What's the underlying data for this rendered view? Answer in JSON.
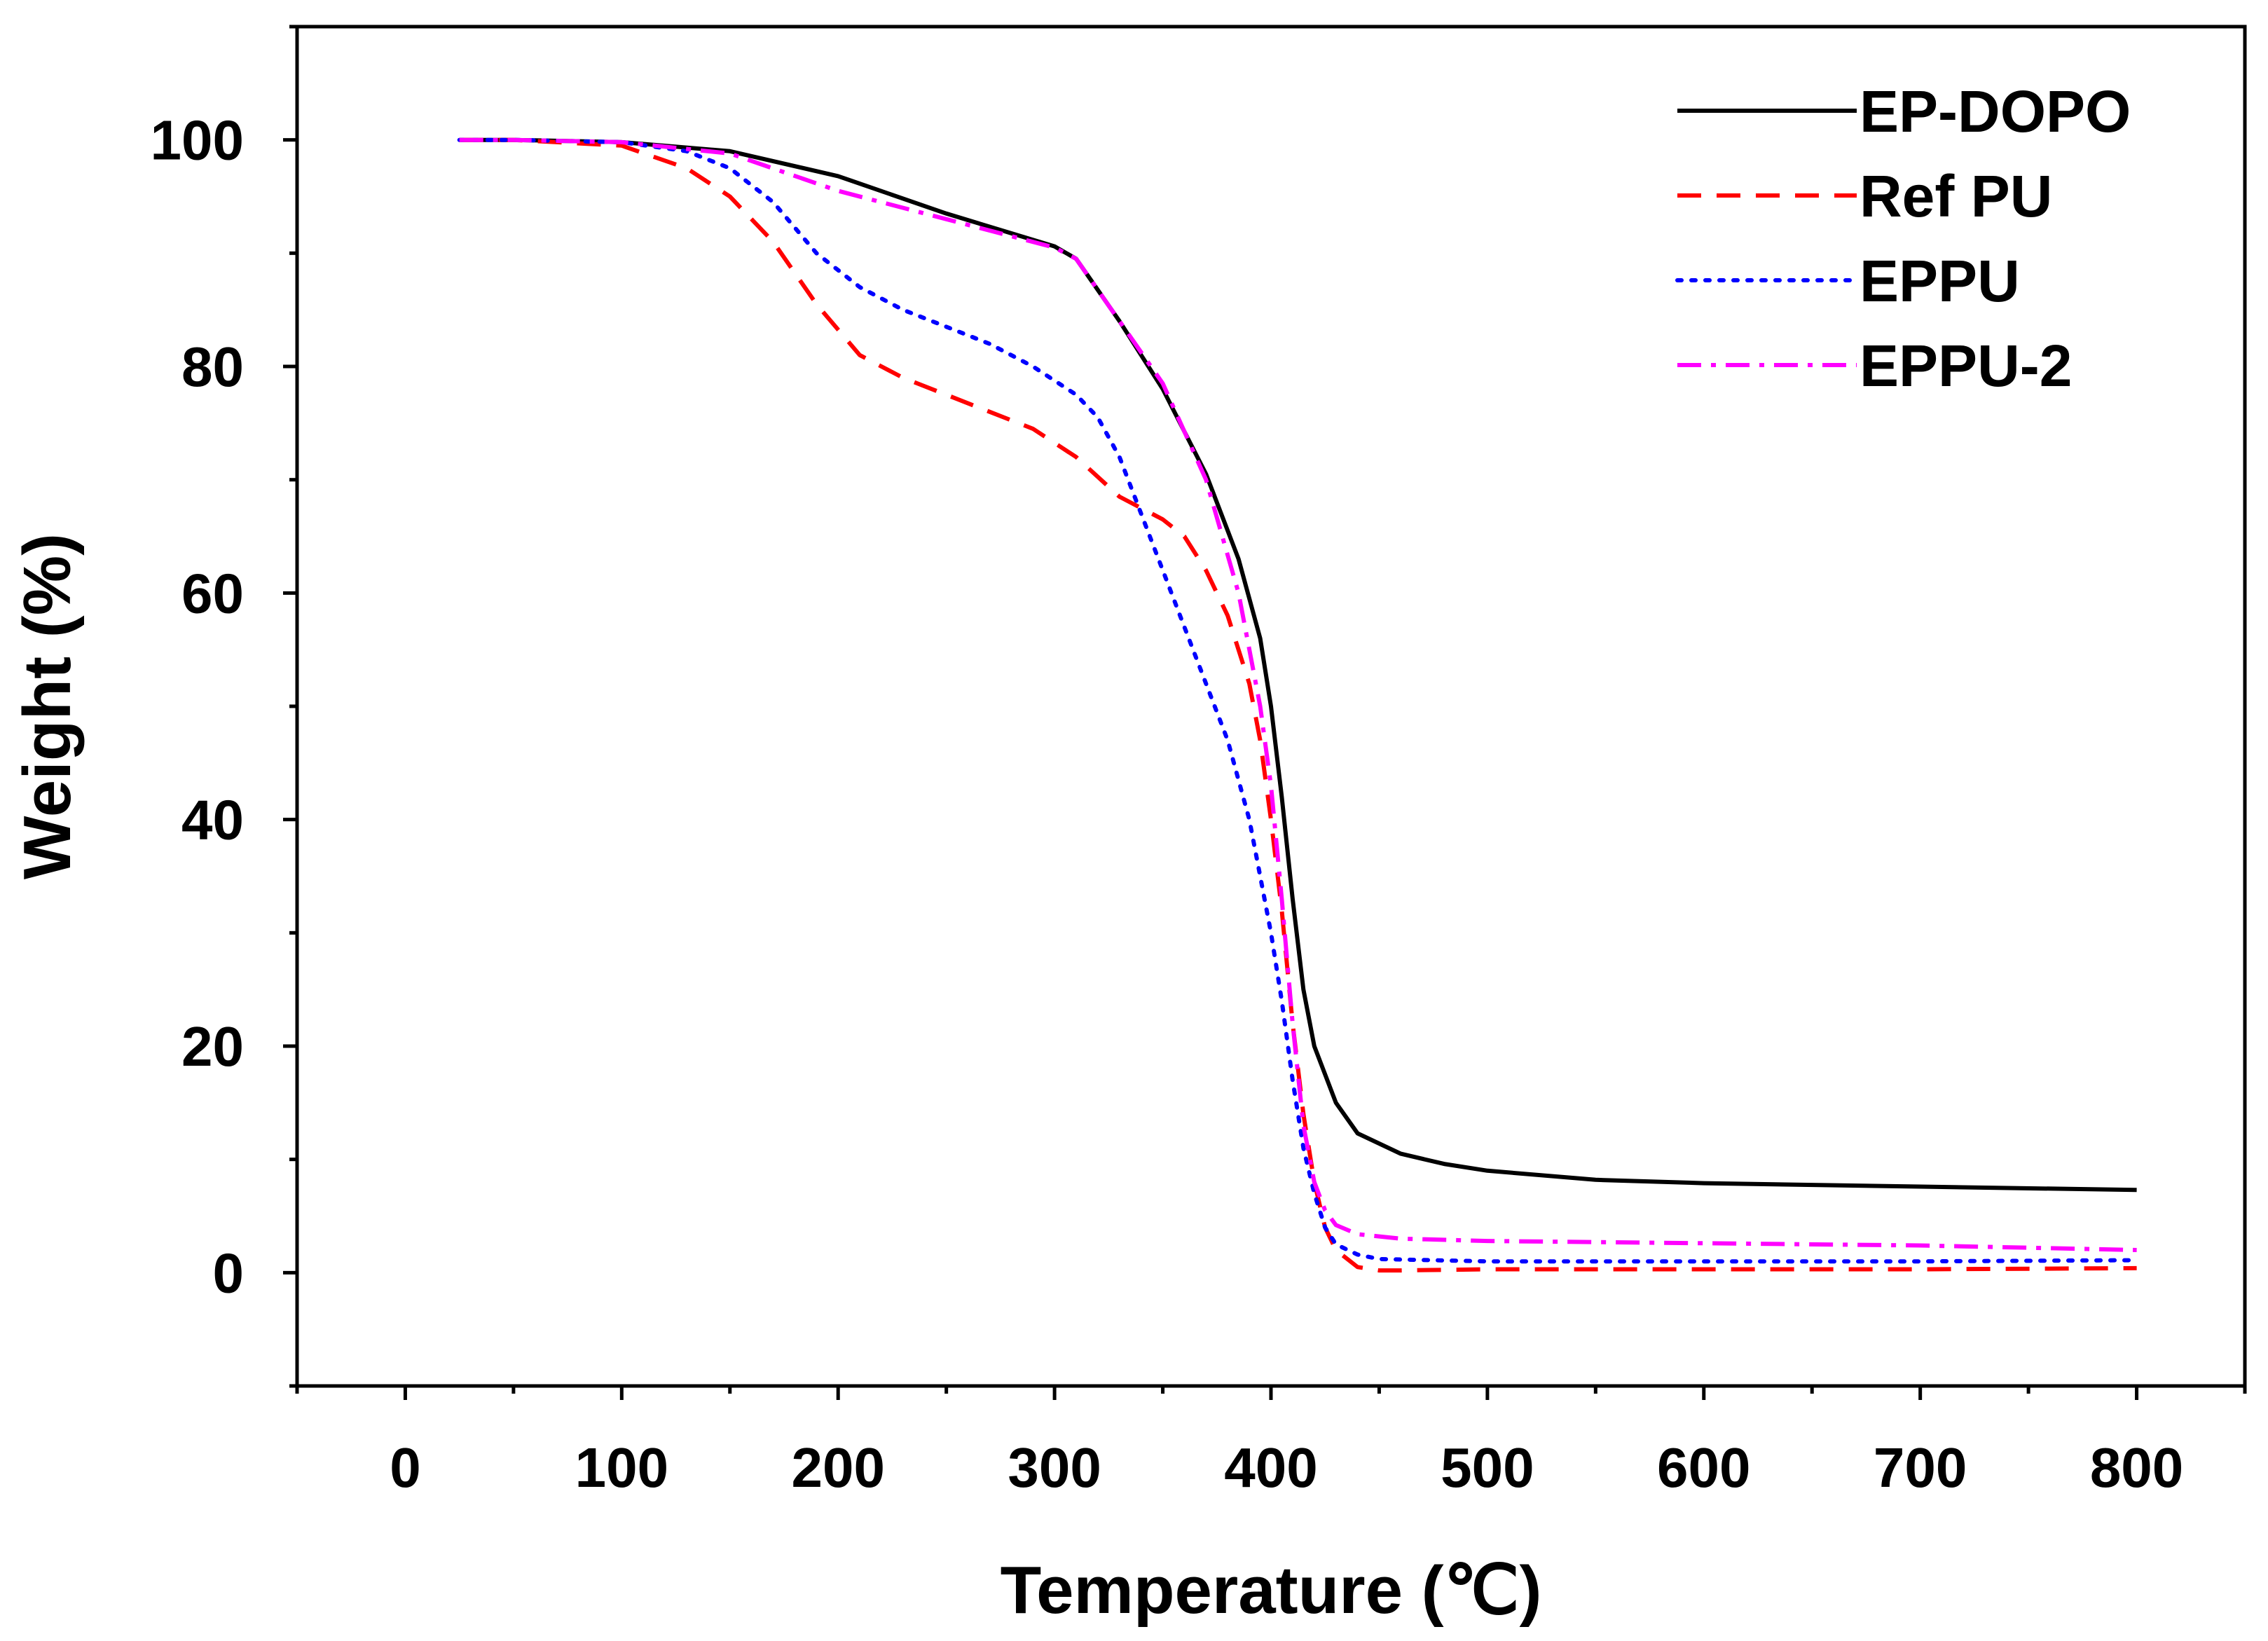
{
  "chart_data": {
    "type": "line",
    "title": "",
    "xlabel": "Temperature (℃)",
    "ylabel": "Weight (%)",
    "xlim": [
      -50,
      850
    ],
    "ylim": [
      -10,
      110
    ],
    "xticks": [
      0,
      100,
      200,
      300,
      400,
      500,
      600,
      700,
      800
    ],
    "xtick_labels": [
      "0",
      "100",
      "200",
      "300",
      "400",
      "500",
      "600",
      "700",
      "800"
    ],
    "yticks": [
      0,
      20,
      40,
      60,
      80,
      100
    ],
    "ytick_labels": [
      "0",
      "20",
      "40",
      "60",
      "80",
      "100"
    ],
    "grid": false,
    "legend_position": "top-right",
    "series": [
      {
        "name": "EP-DOPO",
        "color": "#000000",
        "style": "solid",
        "x": [
          25,
          50,
          100,
          150,
          200,
          250,
          300,
          310,
          330,
          350,
          370,
          385,
          395,
          400,
          405,
          410,
          415,
          420,
          430,
          440,
          460,
          480,
          500,
          550,
          600,
          700,
          800
        ],
        "y": [
          100,
          100,
          99.8,
          99,
          96.8,
          93.5,
          90.6,
          89.5,
          84,
          78,
          70.5,
          63,
          56,
          50,
          42,
          33,
          25,
          20,
          15,
          12.3,
          10.5,
          9.6,
          9,
          8.2,
          7.9,
          7.6,
          7.3
        ]
      },
      {
        "name": "Ref PU",
        "color": "#ff0000",
        "style": "dashed",
        "x": [
          25,
          50,
          100,
          130,
          150,
          170,
          190,
          210,
          230,
          250,
          270,
          290,
          310,
          330,
          350,
          360,
          370,
          380,
          390,
          395,
          400,
          405,
          410,
          415,
          420,
          425,
          430,
          440,
          450,
          460,
          500,
          600,
          700,
          800
        ],
        "y": [
          100,
          100,
          99.5,
          97.5,
          95,
          91,
          85.5,
          81,
          79,
          77.5,
          76,
          74.5,
          72,
          68.5,
          66.5,
          65,
          62,
          58,
          52,
          47,
          40,
          32,
          22,
          14,
          8,
          4,
          2,
          0.5,
          0.2,
          0.2,
          0.3,
          0.3,
          0.3,
          0.4
        ]
      },
      {
        "name": "EPPU",
        "color": "#0000ff",
        "style": "dotted",
        "x": [
          25,
          50,
          100,
          130,
          150,
          170,
          190,
          210,
          230,
          250,
          270,
          290,
          310,
          320,
          330,
          340,
          350,
          360,
          370,
          380,
          390,
          395,
          400,
          405,
          410,
          415,
          420,
          425,
          430,
          440,
          450,
          500,
          600,
          700,
          800
        ],
        "y": [
          100,
          100,
          99.8,
          99,
          97.5,
          94.5,
          90,
          87,
          85,
          83.5,
          82,
          80,
          77.5,
          75.5,
          72,
          67,
          62,
          57,
          52,
          47,
          40,
          35,
          30,
          24,
          17,
          11,
          7,
          4,
          2.5,
          1.6,
          1.2,
          1,
          1,
          1,
          1.1
        ]
      },
      {
        "name": "EPPU-2",
        "color": "#ff00ff",
        "style": "dashdot",
        "x": [
          25,
          50,
          100,
          150,
          200,
          250,
          300,
          310,
          330,
          350,
          370,
          385,
          395,
          400,
          405,
          410,
          415,
          420,
          425,
          430,
          440,
          460,
          500,
          600,
          700,
          800
        ],
        "y": [
          100,
          100,
          99.8,
          98.8,
          95.5,
          93,
          90.5,
          89.5,
          84,
          78.5,
          70,
          60,
          50,
          43,
          33,
          22,
          13,
          8,
          5.5,
          4.2,
          3.4,
          3,
          2.8,
          2.6,
          2.4,
          2.0
        ]
      }
    ]
  }
}
